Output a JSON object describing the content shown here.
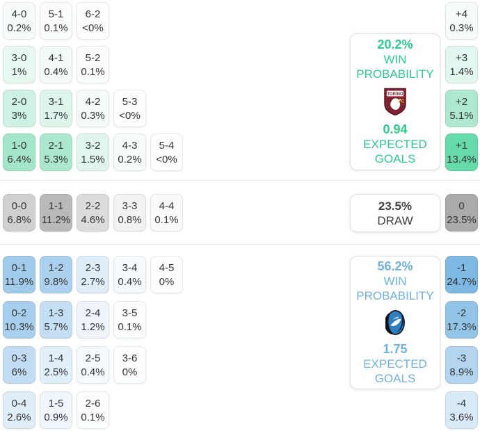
{
  "labels": {
    "win_probability": "WIN PROBABILITY",
    "expected_goals": "EXPECTED GOALS",
    "draw": "DRAW"
  },
  "theme": {
    "home_accent": "#2bcb8c",
    "away_accent": "#6fb1e0",
    "draw_text": "#3f3f3f",
    "cell_text": "#333333",
    "separator": "#e5e5e5",
    "torino_maroon": "#7d2230",
    "atalanta_blue": "#2e7fc2",
    "atalanta_black": "#10131c"
  },
  "chart_data": {
    "type": "heatmap",
    "description": "Football match scoreline probability matrix with goal-difference distribution",
    "home_team": {
      "name": "Torino FC",
      "win_probability": "20.2%",
      "expected_goals": "0.94"
    },
    "away_team": {
      "name": "Atalanta",
      "win_probability": "56.2%",
      "expected_goals": "1.75"
    },
    "draw": {
      "probability": "23.5%"
    },
    "home_score_rows": [
      [
        {
          "label": "4-0",
          "pct": "0.2%",
          "bg": "#f7fcfa"
        },
        {
          "label": "5-1",
          "pct": "0.1%",
          "bg": "#fafdfb"
        },
        {
          "label": "6-2",
          "pct": "<0%",
          "bg": "#fefefe"
        }
      ],
      [
        {
          "label": "3-0",
          "pct": "1%",
          "bg": "#e7f8f0"
        },
        {
          "label": "4-1",
          "pct": "0.4%",
          "bg": "#f2fbf7"
        },
        {
          "label": "5-2",
          "pct": "0.1%",
          "bg": "#fafdfb"
        }
      ],
      [
        {
          "label": "2-0",
          "pct": "3%",
          "bg": "#cdf1e2"
        },
        {
          "label": "3-1",
          "pct": "1.7%",
          "bg": "#ddf5ea"
        },
        {
          "label": "4-2",
          "pct": "0.3%",
          "bg": "#f4fbf8"
        },
        {
          "label": "5-3",
          "pct": "<0%",
          "bg": "#fefefe"
        }
      ],
      [
        {
          "label": "1-0",
          "pct": "6.4%",
          "bg": "#a2e5c8"
        },
        {
          "label": "2-1",
          "pct": "5.3%",
          "bg": "#ace8cf"
        },
        {
          "label": "3-2",
          "pct": "1.5%",
          "bg": "#e0f6ec"
        },
        {
          "label": "4-3",
          "pct": "0.2%",
          "bg": "#f7fcfa"
        },
        {
          "label": "5-4",
          "pct": "<0%",
          "bg": "#fefefe"
        }
      ]
    ],
    "draw_score_row": [
      {
        "label": "0-0",
        "pct": "6.8%",
        "bg": "#d0d0d0"
      },
      {
        "label": "1-1",
        "pct": "11.2%",
        "bg": "#b9b9b9"
      },
      {
        "label": "2-2",
        "pct": "4.6%",
        "bg": "#dcdcdc"
      },
      {
        "label": "3-3",
        "pct": "0.8%",
        "bg": "#f2f2f2"
      },
      {
        "label": "4-4",
        "pct": "0.1%",
        "bg": "#fafafa"
      }
    ],
    "away_score_rows": [
      [
        {
          "label": "0-1",
          "pct": "11.9%",
          "bg": "#a0cbeb"
        },
        {
          "label": "1-2",
          "pct": "9.8%",
          "bg": "#abd1ee"
        },
        {
          "label": "2-3",
          "pct": "2.7%",
          "bg": "#dfedf8"
        },
        {
          "label": "3-4",
          "pct": "0.4%",
          "bg": "#f6fafd"
        },
        {
          "label": "4-5",
          "pct": "0%",
          "bg": "#fdfefe"
        }
      ],
      [
        {
          "label": "0-2",
          "pct": "10.3%",
          "bg": "#a8cfed"
        },
        {
          "label": "1-3",
          "pct": "5.7%",
          "bg": "#c4def3"
        },
        {
          "label": "2-4",
          "pct": "1.2%",
          "bg": "#edf5fb"
        },
        {
          "label": "3-5",
          "pct": "0.1%",
          "bg": "#fbfdfe"
        }
      ],
      [
        {
          "label": "0-3",
          "pct": "6%",
          "bg": "#c2ddf3"
        },
        {
          "label": "1-4",
          "pct": "2.5%",
          "bg": "#e1eff9"
        },
        {
          "label": "2-5",
          "pct": "0.4%",
          "bg": "#f6fafd"
        },
        {
          "label": "3-6",
          "pct": "0%",
          "bg": "#fdfefe"
        }
      ],
      [
        {
          "label": "0-4",
          "pct": "2.6%",
          "bg": "#e0eef9"
        },
        {
          "label": "1-5",
          "pct": "0.9%",
          "bg": "#f0f7fc"
        },
        {
          "label": "2-6",
          "pct": "0.1%",
          "bg": "#fbfdfe"
        }
      ]
    ],
    "goal_difference": {
      "plus": [
        {
          "label": "+4",
          "pct": "0.3%",
          "bg": "#f5fcf9"
        },
        {
          "label": "+3",
          "pct": "1.4%",
          "bg": "#e2f7ee"
        },
        {
          "label": "+2",
          "pct": "5.1%",
          "bg": "#aee8d1"
        },
        {
          "label": "+1",
          "pct": "13.4%",
          "bg": "#67daa9"
        }
      ],
      "zero": {
        "label": "0",
        "pct": "23.5%",
        "bg": "#ababab"
      },
      "minus": [
        {
          "label": "-1",
          "pct": "24.7%",
          "bg": "#7db9e3"
        },
        {
          "label": "-2",
          "pct": "17.3%",
          "bg": "#93c5e9"
        },
        {
          "label": "-3",
          "pct": "8.9%",
          "bg": "#b3d5ef"
        },
        {
          "label": "-4",
          "pct": "3.6%",
          "bg": "#d8e9f7"
        }
      ]
    }
  }
}
